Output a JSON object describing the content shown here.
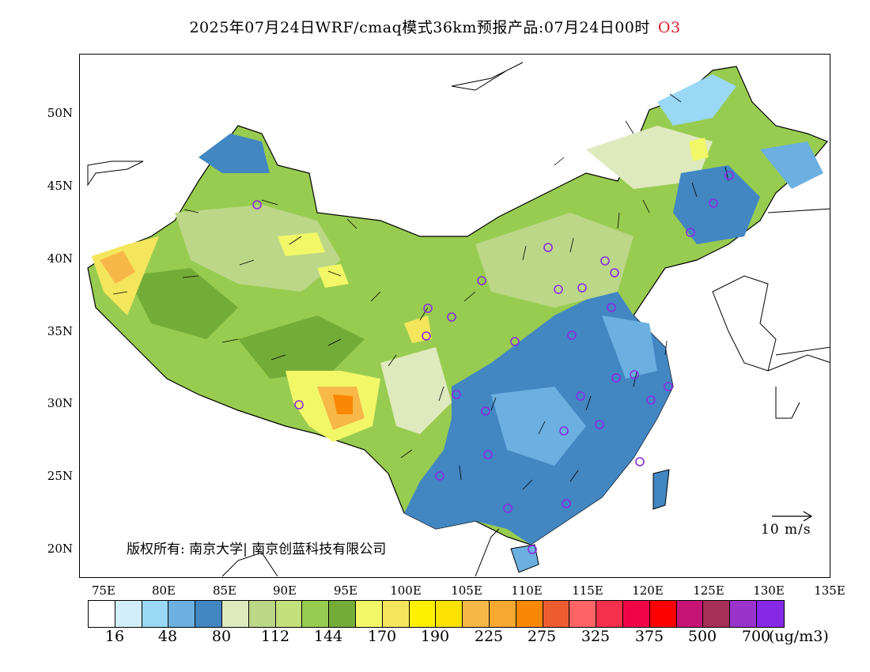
{
  "title": {
    "text": "2025年07月24日WRF/cmaq模式36km预报产品:07月24日00时",
    "species": "O3",
    "species_color": "#e0202a"
  },
  "map": {
    "region": "China",
    "lon_range": [
      73,
      135
    ],
    "lat_range": [
      18,
      54
    ],
    "lat_labels": [
      "50N",
      "45N",
      "40N",
      "35N",
      "30N",
      "25N",
      "20N"
    ],
    "lon_labels": [
      "75E",
      "80E",
      "85E",
      "90E",
      "95E",
      "100E",
      "105E",
      "110E",
      "115E",
      "120E",
      "125E",
      "130E",
      "135E"
    ],
    "copyright": "版权所有: 南京大学| 南京创蓝科技有限公司",
    "wind_scale_label": "10 m/s",
    "station_marker_color": "#8a2be2"
  },
  "colorbar": {
    "colors": [
      "#ffffff",
      "#d2eefa",
      "#9ad8f5",
      "#6bb0e0",
      "#4286c2",
      "#dfe9be",
      "#bcd788",
      "#c4e07c",
      "#98cc50",
      "#74ac38",
      "#f2f768",
      "#f4e65c",
      "#fff000",
      "#fbe200",
      "#f8b848",
      "#f6a830",
      "#fb8804",
      "#ed5c30",
      "#fd6466",
      "#f5304c",
      "#ef0548",
      "#fd0000",
      "#c61477",
      "#a72e56",
      "#9a33cc",
      "#8529e6"
    ],
    "labels": [
      "16",
      "48",
      "80",
      "112",
      "144",
      "170",
      "190",
      "225",
      "275",
      "325",
      "375",
      "500",
      "700"
    ],
    "unit": "(ug/m3)"
  }
}
